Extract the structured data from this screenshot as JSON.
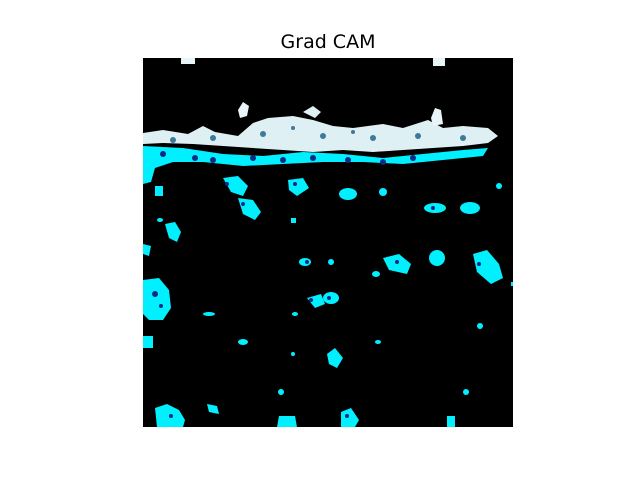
{
  "title": "Grad CAM",
  "image": {
    "description_colors": {
      "background": "#000000",
      "activation": "#00f0ff",
      "dark_activation": "#0a2a8a",
      "highlight": "#e8f4f8"
    }
  }
}
